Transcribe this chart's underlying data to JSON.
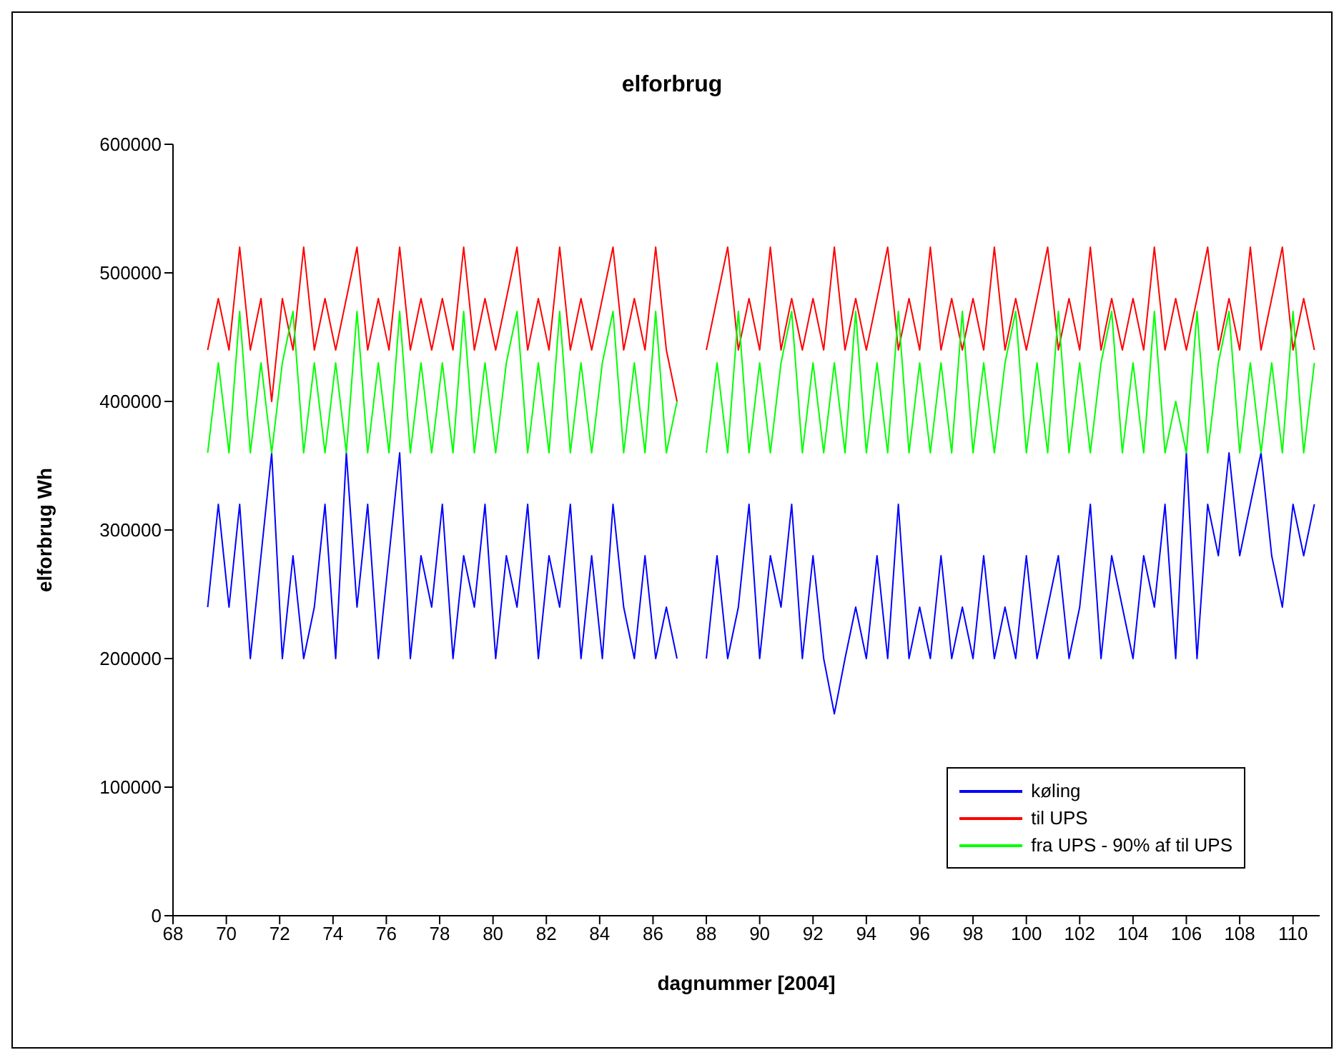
{
  "chart_data": {
    "type": "line",
    "title": "elforbrug",
    "xlabel": "dagnummer [2004]",
    "ylabel": "elforbrug Wh",
    "x": [
      69.3,
      69.7,
      70.1,
      70.5,
      70.9,
      71.3,
      71.7,
      72.1,
      72.5,
      72.9,
      73.3,
      73.7,
      74.1,
      74.5,
      74.9,
      75.3,
      75.7,
      76.1,
      76.5,
      76.9,
      77.3,
      77.7,
      78.1,
      78.5,
      78.9,
      79.3,
      79.7,
      80.1,
      80.5,
      80.9,
      81.3,
      81.7,
      82.1,
      82.5,
      82.9,
      83.3,
      83.7,
      84.1,
      84.5,
      84.9,
      85.3,
      85.7,
      86.1,
      86.5,
      86.9,
      87.5,
      88.0,
      88.4,
      88.8,
      89.2,
      89.6,
      90.0,
      90.4,
      90.8,
      91.2,
      91.6,
      92.0,
      92.4,
      92.8,
      93.2,
      93.6,
      94.0,
      94.4,
      94.8,
      95.2,
      95.6,
      96.0,
      96.4,
      96.8,
      97.2,
      97.6,
      98.0,
      98.4,
      98.8,
      99.2,
      99.6,
      100.0,
      100.4,
      100.8,
      101.2,
      101.6,
      102.0,
      102.4,
      102.8,
      103.2,
      103.6,
      104.0,
      104.4,
      104.8,
      105.2,
      105.6,
      106.0,
      106.4,
      106.8,
      107.2,
      107.6,
      108.0,
      108.4,
      108.8,
      109.2,
      109.6,
      110.0,
      110.4,
      110.8
    ],
    "series": [
      {
        "name": "køling",
        "color": "#0000ff",
        "values": [
          240000,
          320000,
          240000,
          320000,
          200000,
          280000,
          360000,
          200000,
          280000,
          200000,
          240000,
          320000,
          200000,
          360000,
          240000,
          320000,
          200000,
          280000,
          360000,
          200000,
          280000,
          240000,
          320000,
          200000,
          280000,
          240000,
          320000,
          200000,
          280000,
          240000,
          320000,
          200000,
          280000,
          240000,
          320000,
          200000,
          280000,
          200000,
          320000,
          240000,
          200000,
          280000,
          200000,
          240000,
          200000,
          null,
          200000,
          280000,
          200000,
          240000,
          320000,
          200000,
          280000,
          240000,
          320000,
          200000,
          280000,
          200000,
          157000,
          200000,
          240000,
          200000,
          280000,
          200000,
          320000,
          200000,
          240000,
          200000,
          280000,
          200000,
          240000,
          200000,
          280000,
          200000,
          240000,
          200000,
          280000,
          200000,
          240000,
          280000,
          200000,
          240000,
          320000,
          200000,
          280000,
          240000,
          200000,
          280000,
          240000,
          320000,
          200000,
          360000,
          200000,
          320000,
          280000,
          360000,
          280000,
          320000,
          360000,
          280000,
          240000,
          320000,
          280000,
          320000
        ]
      },
      {
        "name": "til UPS",
        "color": "#ff0000",
        "values": [
          440000,
          480000,
          440000,
          520000,
          440000,
          480000,
          400000,
          480000,
          440000,
          520000,
          440000,
          480000,
          440000,
          480000,
          520000,
          440000,
          480000,
          440000,
          520000,
          440000,
          480000,
          440000,
          480000,
          440000,
          520000,
          440000,
          480000,
          440000,
          480000,
          520000,
          440000,
          480000,
          440000,
          520000,
          440000,
          480000,
          440000,
          480000,
          520000,
          440000,
          480000,
          440000,
          520000,
          440000,
          400000,
          null,
          440000,
          480000,
          520000,
          440000,
          480000,
          440000,
          520000,
          440000,
          480000,
          440000,
          480000,
          440000,
          520000,
          440000,
          480000,
          440000,
          480000,
          520000,
          440000,
          480000,
          440000,
          520000,
          440000,
          480000,
          440000,
          480000,
          440000,
          520000,
          440000,
          480000,
          440000,
          480000,
          520000,
          440000,
          480000,
          440000,
          520000,
          440000,
          480000,
          440000,
          480000,
          440000,
          520000,
          440000,
          480000,
          440000,
          480000,
          520000,
          440000,
          480000,
          440000,
          520000,
          440000,
          480000,
          520000,
          440000,
          480000,
          440000
        ]
      },
      {
        "name": "fra UPS - 90% af til UPS",
        "color": "#00ff00",
        "values": [
          360000,
          430000,
          360000,
          470000,
          360000,
          430000,
          360000,
          430000,
          470000,
          360000,
          430000,
          360000,
          430000,
          360000,
          470000,
          360000,
          430000,
          360000,
          470000,
          360000,
          430000,
          360000,
          430000,
          360000,
          470000,
          360000,
          430000,
          360000,
          430000,
          470000,
          360000,
          430000,
          360000,
          470000,
          360000,
          430000,
          360000,
          430000,
          470000,
          360000,
          430000,
          360000,
          470000,
          360000,
          400000,
          null,
          360000,
          430000,
          360000,
          470000,
          360000,
          430000,
          360000,
          430000,
          470000,
          360000,
          430000,
          360000,
          430000,
          360000,
          470000,
          360000,
          430000,
          360000,
          470000,
          360000,
          430000,
          360000,
          430000,
          360000,
          470000,
          360000,
          430000,
          360000,
          430000,
          470000,
          360000,
          430000,
          360000,
          470000,
          360000,
          430000,
          360000,
          430000,
          470000,
          360000,
          430000,
          360000,
          470000,
          360000,
          400000,
          360000,
          470000,
          360000,
          430000,
          470000,
          360000,
          430000,
          360000,
          430000,
          360000,
          470000,
          360000,
          430000
        ]
      }
    ],
    "xlim": [
      68,
      111
    ],
    "xticks": [
      68,
      70,
      72,
      74,
      76,
      78,
      80,
      82,
      84,
      86,
      88,
      90,
      92,
      94,
      96,
      98,
      100,
      102,
      104,
      106,
      108,
      110
    ],
    "ylim": [
      0,
      600000
    ],
    "yticks": [
      0,
      100000,
      200000,
      300000,
      400000,
      500000,
      600000
    ],
    "grid": false,
    "legend": "bottom right",
    "marker": "none",
    "line_style": "solid"
  }
}
